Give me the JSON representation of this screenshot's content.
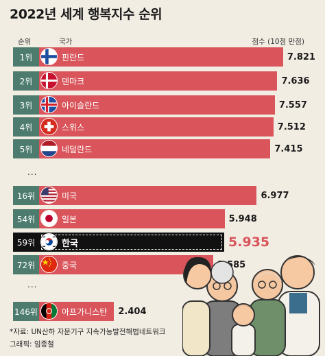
{
  "header": {
    "title": "2022년 세계 행복지수 순위",
    "col_rank": "순위",
    "col_country": "국가",
    "col_score": "점수 (10점 만점)"
  },
  "ellipsis": "...",
  "chart_data": {
    "type": "bar",
    "title": "2022년 세계 행복지수 순위",
    "orientation": "horizontal",
    "categories": [
      "핀란드",
      "덴마크",
      "아이슬란드",
      "스위스",
      "네덜란드",
      "미국",
      "일본",
      "한국",
      "중국",
      "아프가니스탄"
    ],
    "ranks": [
      "1위",
      "2위",
      "3위",
      "4위",
      "5위",
      "16위",
      "54위",
      "59위",
      "72위",
      "146위"
    ],
    "values": [
      7.821,
      7.636,
      7.557,
      7.512,
      7.415,
      6.977,
      5.948,
      5.935,
      5.585,
      2.404
    ],
    "value_labels": [
      "7.821",
      "7.636",
      "7.557",
      "7.512",
      "7.415",
      "6.977",
      "5.948",
      "5.935",
      "5.585",
      "2.404"
    ],
    "highlight": "한국",
    "xlim": [
      0,
      10
    ],
    "bar_color": "#d9555b",
    "rank_color": "#4d7c6f",
    "highlight_color": "#111111"
  },
  "footer": {
    "source": "*자료: UN산하 자문기구 지속가능발전해법네트워크",
    "credit": "그래픽: 임종철"
  }
}
